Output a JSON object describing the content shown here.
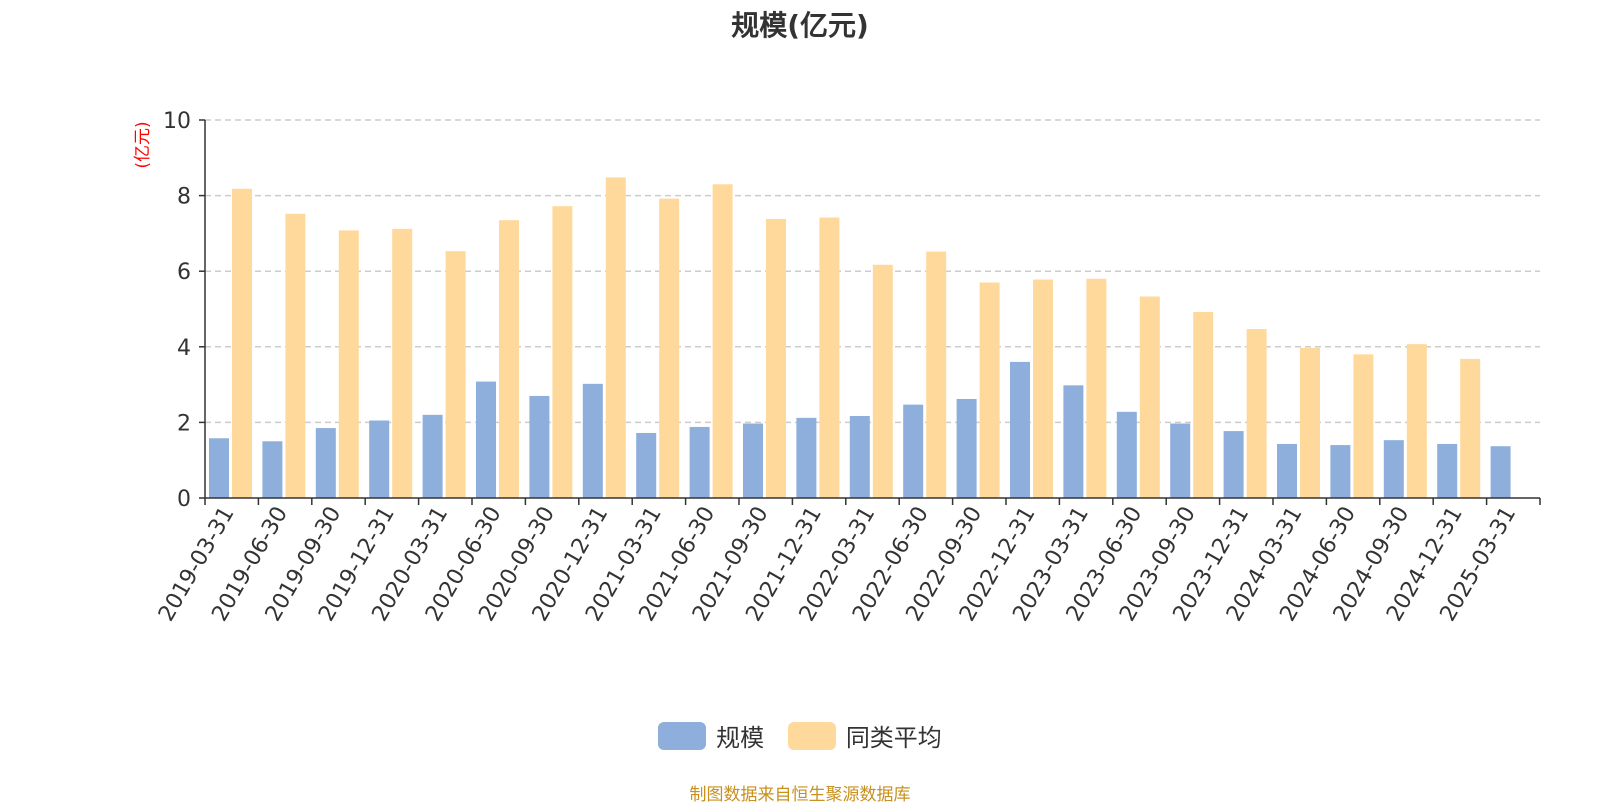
{
  "source_note": "制图数据来自恒生聚源数据库",
  "colors": {
    "scale": "#8eaedc",
    "peer_avg": "#ffd99b",
    "unit_label": "#ff0000",
    "source_note": "#c8901e",
    "axis": "#333333",
    "grid": "#cccccc"
  },
  "chart_data": {
    "type": "bar",
    "title": "规模(亿元)",
    "ylabel": "(亿元)",
    "ylim": [
      0,
      10
    ],
    "yticks": [
      "0",
      "2",
      "4",
      "6",
      "8",
      "10"
    ],
    "grid": true,
    "legend_position": "bottom",
    "categories": [
      "2019-03-31",
      "2019-06-30",
      "2019-09-30",
      "2019-12-31",
      "2020-03-31",
      "2020-06-30",
      "2020-09-30",
      "2020-12-31",
      "2021-03-31",
      "2021-06-30",
      "2021-09-30",
      "2021-12-31",
      "2022-03-31",
      "2022-06-30",
      "2022-09-30",
      "2022-12-31",
      "2023-03-31",
      "2023-06-30",
      "2023-09-30",
      "2023-12-31",
      "2024-03-31",
      "2024-06-30",
      "2024-09-30",
      "2024-12-31",
      "2025-03-31"
    ],
    "series": [
      {
        "name": "规模",
        "values": [
          1.58,
          1.5,
          1.85,
          2.05,
          2.2,
          3.08,
          2.7,
          3.02,
          1.72,
          1.88,
          1.97,
          2.12,
          2.17,
          2.47,
          2.62,
          3.6,
          2.98,
          2.28,
          1.97,
          1.77,
          1.43,
          1.4,
          1.53,
          1.43,
          1.37
        ]
      },
      {
        "name": "同类平均",
        "values": [
          8.18,
          7.52,
          7.08,
          7.12,
          6.53,
          7.35,
          7.72,
          8.48,
          7.92,
          8.3,
          7.38,
          7.42,
          6.17,
          6.52,
          5.7,
          5.78,
          5.8,
          5.33,
          4.92,
          4.47,
          3.97,
          3.8,
          4.07,
          3.68,
          null
        ]
      }
    ]
  }
}
